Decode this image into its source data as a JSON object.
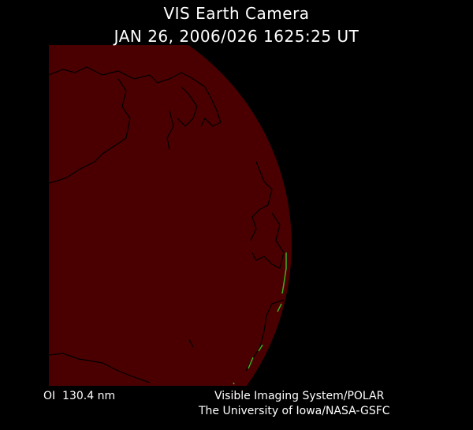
{
  "header": {
    "title": "VIS Earth Camera",
    "timestamp": "JAN 26, 2006/026 1625:25 UT"
  },
  "footer": {
    "wavelength": "OI  130.4 nm",
    "instrument": "Visible Imaging System/POLAR",
    "institution": "The University of Iowa/NASA-GSFC"
  },
  "colors": {
    "background": "#000000",
    "earth_disk": "#4a0000",
    "coastline": "#000000",
    "aurora": "#3fae1f",
    "text": "#ffffff"
  }
}
